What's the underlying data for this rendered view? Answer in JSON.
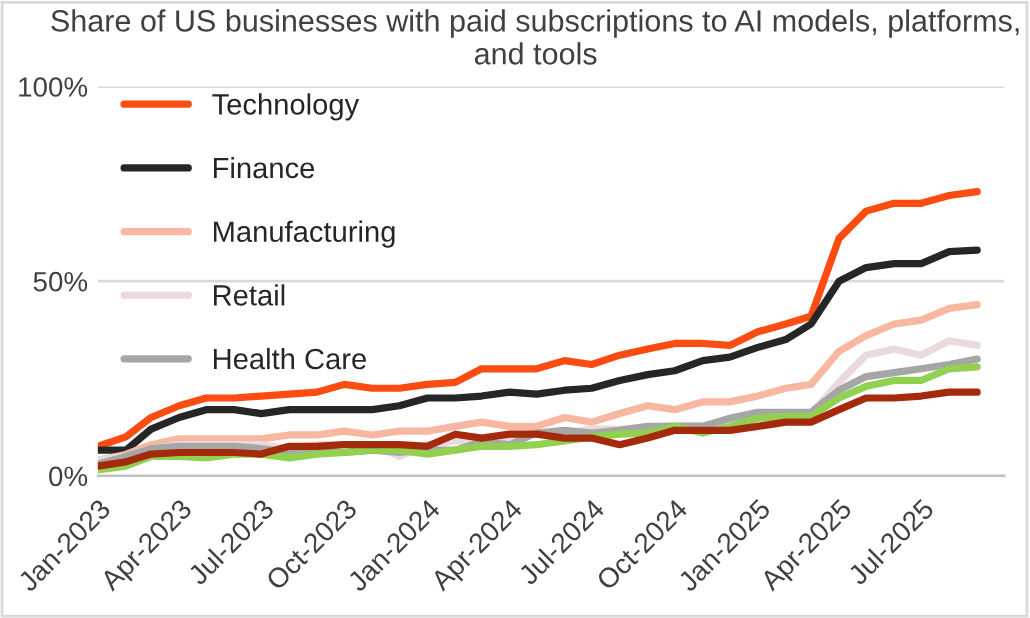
{
  "chart_data": {
    "type": "line",
    "title": "Share of US businesses with paid subscriptions to AI models, platforms, and tools",
    "x": [
      "2023-01",
      "2023-02",
      "2023-03",
      "2023-04",
      "2023-05",
      "2023-06",
      "2023-07",
      "2023-08",
      "2023-09",
      "2023-10",
      "2023-11",
      "2023-12",
      "2024-01",
      "2024-02",
      "2024-03",
      "2024-04",
      "2024-05",
      "2024-06",
      "2024-07",
      "2024-08",
      "2024-09",
      "2024-10",
      "2024-11",
      "2024-12",
      "2025-01",
      "2025-02",
      "2025-03",
      "2025-04",
      "2025-05",
      "2025-06",
      "2025-07",
      "2025-08",
      "2025-09"
    ],
    "series": [
      {
        "name": "Technology",
        "color": "#fc4c12",
        "values": [
          7.6,
          10,
          15,
          18,
          20,
          20,
          20.5,
          21,
          21.5,
          23.5,
          22.5,
          22.5,
          23.5,
          24,
          27.5,
          27.5,
          27.5,
          29.6,
          28.6,
          31,
          32.6,
          34,
          34,
          33.5,
          37,
          39,
          41,
          61,
          68,
          70,
          70,
          72,
          73
        ]
      },
      {
        "name": "Finance",
        "color": "#262626",
        "values": [
          6.6,
          6.6,
          12,
          15,
          17,
          17,
          16,
          17,
          17,
          17,
          17,
          18,
          20,
          20,
          20.5,
          21.5,
          21,
          22,
          22.5,
          24.5,
          26,
          27,
          29.6,
          30.5,
          33,
          35,
          39,
          50,
          53.5,
          54.5,
          54.5,
          57.6,
          58
        ]
      },
      {
        "name": "Manufacturing",
        "color": "#f8b7a0",
        "values": [
          4,
          5.5,
          8,
          9.5,
          9.5,
          9.5,
          9.5,
          10.5,
          10.5,
          11.5,
          10.5,
          11.5,
          11.5,
          12.7,
          13.8,
          12.7,
          12.7,
          15,
          13.8,
          16,
          18,
          17,
          19,
          19,
          20.5,
          22.5,
          23.5,
          32,
          36,
          39,
          40,
          43,
          44
        ]
      },
      {
        "name": "Retail",
        "color": "#eadadb",
        "values": [
          4,
          5,
          7,
          8,
          8,
          8,
          8,
          7,
          8,
          8,
          8,
          5,
          8,
          9,
          9,
          10,
          11,
          11,
          12,
          12,
          12.5,
          13,
          13,
          14,
          15,
          16,
          16,
          24,
          31,
          32.6,
          31,
          34.7,
          33.5
        ]
      },
      {
        "name": "Health Care",
        "color": "#a6a6a6",
        "values": [
          3,
          5,
          7,
          7.6,
          7.6,
          7.6,
          7,
          6,
          6,
          6,
          6.6,
          6,
          6.6,
          6.6,
          8.7,
          8,
          11,
          11.7,
          11,
          11.7,
          12.7,
          12.7,
          12.7,
          14.8,
          16.3,
          16.3,
          16.3,
          22,
          25.5,
          26.5,
          27.5,
          28.6,
          30
        ]
      },
      {
        "color": "#92d050",
        "values": [
          1.5,
          2.5,
          5,
          5,
          4.6,
          5.6,
          5.6,
          4.6,
          5.6,
          6,
          6.6,
          6.6,
          5.6,
          6.6,
          7.6,
          7.6,
          8,
          9,
          10,
          10.7,
          11,
          12.7,
          11,
          12.7,
          14.8,
          15.3,
          15.3,
          20,
          23,
          24.5,
          24.5,
          27.5,
          28
        ]
      },
      {
        "color": "#a52a0c",
        "values": [
          2.5,
          3.6,
          5.6,
          6,
          6,
          6,
          5.6,
          7.6,
          7.6,
          8,
          8,
          8,
          7.6,
          10.7,
          9.7,
          10.7,
          10.7,
          9.7,
          9.7,
          8,
          9.7,
          11.7,
          11.7,
          11.7,
          12.7,
          13.8,
          13.8,
          17,
          20,
          20,
          20.5,
          21.5,
          21.5
        ]
      }
    ],
    "xlim": [
      "2023-01",
      "2025-10"
    ],
    "xticks": [
      {
        "value": "2023-01",
        "label": "Jan-2023"
      },
      {
        "value": "2023-04",
        "label": "Apr-2023"
      },
      {
        "value": "2023-07",
        "label": "Jul-2023"
      },
      {
        "value": "2023-10",
        "label": "Oct-2023"
      },
      {
        "value": "2024-01",
        "label": "Jan-2024"
      },
      {
        "value": "2024-04",
        "label": "Apr-2024"
      },
      {
        "value": "2024-07",
        "label": "Jul-2024"
      },
      {
        "value": "2024-10",
        "label": "Oct-2024"
      },
      {
        "value": "2025-01",
        "label": "Jan-2025"
      },
      {
        "value": "2025-04",
        "label": "Apr-2025"
      },
      {
        "value": "2025-07",
        "label": "Jul-2025"
      }
    ],
    "ylim": [
      0,
      100
    ],
    "yticks": [
      {
        "value": 0,
        "label": "0%"
      },
      {
        "value": 50,
        "label": "50%"
      },
      {
        "value": 100,
        "label": "100%"
      }
    ],
    "grid": "y",
    "legend": "top left",
    "marker": "none",
    "line_style": "solid"
  }
}
